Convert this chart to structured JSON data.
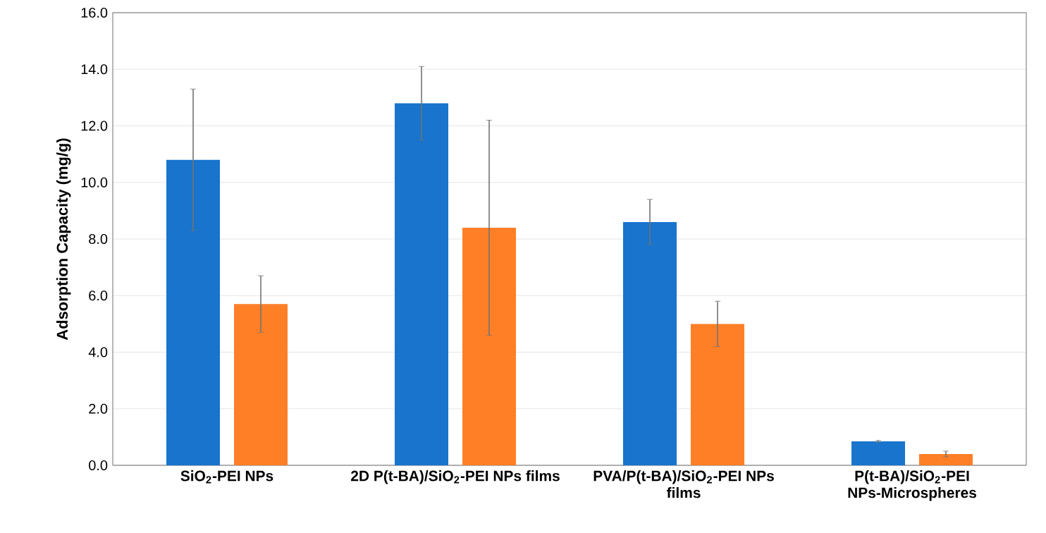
{
  "chart_data": {
    "type": "bar",
    "ylabel": "**Adsorption Capacity (mg/g)**",
    "categories": [
      "**SiO$_{2}$-PEI NPs**",
      "**2D P(t-BA)/SiO$_{2}$-PEI NPs films**",
      "**PVA/P(t-BA)/SiO$_{2}$-PEI NPs films**",
      "**P(t-BA)/SiO$_{2}$-PEI NPs-Microspheres**"
    ],
    "series": [
      {
        "color": "#1874cd",
        "values": [
          10.8,
          12.8,
          8.6,
          0.85
        ],
        "errors": [
          2.5,
          1.3,
          0.8,
          0.03
        ]
      },
      {
        "color": "#ff7f27",
        "values": [
          5.7,
          8.4,
          5.0,
          0.4
        ],
        "errors": [
          1.0,
          3.8,
          0.8,
          0.1
        ]
      }
    ],
    "ylim": [
      0,
      16
    ],
    "yticks": [
      {
        "value": 0,
        "label": "0.0"
      },
      {
        "value": 2,
        "label": "2.0"
      },
      {
        "value": 4,
        "label": "4.0"
      },
      {
        "value": 6,
        "label": "6.0"
      },
      {
        "value": 8,
        "label": "8.0"
      },
      {
        "value": 10,
        "label": "10.0"
      },
      {
        "value": 12,
        "label": "12.0"
      },
      {
        "value": 14,
        "label": "14.0"
      },
      {
        "value": 16,
        "label": "16.0"
      }
    ],
    "grid": "y"
  }
}
